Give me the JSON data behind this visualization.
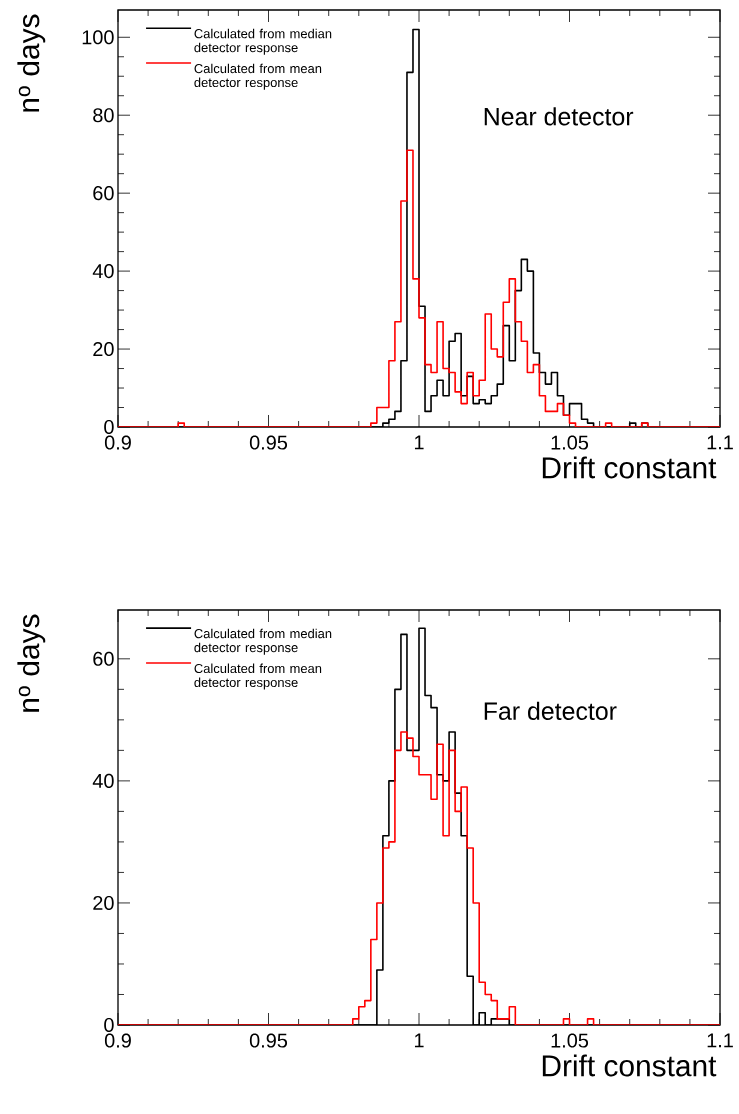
{
  "chart_data": [
    {
      "type": "histogram",
      "xlabel": "Drift constant",
      "ylabel": "n$^{o}$ days",
      "annotations": [
        "Near detector"
      ],
      "legend": "top left",
      "bins": [
        0.9,
        0.902,
        0.904,
        0.906,
        0.908,
        0.91,
        0.912,
        0.914,
        0.916,
        0.918,
        0.92,
        0.922,
        0.924,
        0.926,
        0.928,
        0.93,
        0.932,
        0.934,
        0.936,
        0.938,
        0.94,
        0.942,
        0.944,
        0.946,
        0.948,
        0.95,
        0.952,
        0.954,
        0.956,
        0.958,
        0.96,
        0.962,
        0.964,
        0.966,
        0.968,
        0.97,
        0.972,
        0.974,
        0.976,
        0.978,
        0.98,
        0.982,
        0.984,
        0.986,
        0.988,
        0.99,
        0.992,
        0.994,
        0.996,
        0.998,
        1.0,
        1.002,
        1.004,
        1.006,
        1.008,
        1.01,
        1.012,
        1.014,
        1.016,
        1.018,
        1.02,
        1.022,
        1.024,
        1.026,
        1.028,
        1.03,
        1.032,
        1.034,
        1.036,
        1.038,
        1.04,
        1.042,
        1.044,
        1.046,
        1.048,
        1.05,
        1.052,
        1.054,
        1.056,
        1.058,
        1.06,
        1.062,
        1.064,
        1.066,
        1.068,
        1.07,
        1.072,
        1.074,
        1.076,
        1.078,
        1.08,
        1.082,
        1.084,
        1.086,
        1.088,
        1.09,
        1.092,
        1.094,
        1.096,
        1.098,
        1.1
      ],
      "xlim": [
        0.9,
        1.1
      ],
      "xticks": [
        0.9,
        0.95,
        1,
        1.05,
        1.1
      ],
      "ylim": [
        0,
        107
      ],
      "yticks": [
        0,
        20,
        40,
        60,
        80,
        100
      ],
      "series": [
        {
          "name": "Calculated from median detector response",
          "color": "#000000",
          "values": [
            0,
            0,
            0,
            0,
            0,
            0,
            0,
            0,
            0,
            0,
            0,
            0,
            0,
            0,
            0,
            0,
            0,
            0,
            0,
            0,
            0,
            0,
            0,
            0,
            0,
            0,
            0,
            0,
            0,
            0,
            0,
            0,
            0,
            0,
            0,
            0,
            0,
            0,
            0,
            0,
            0,
            0,
            0,
            0,
            1,
            2,
            4,
            17,
            91,
            102,
            31,
            4,
            8,
            12,
            8,
            22,
            24,
            8,
            13,
            6,
            7,
            6,
            8,
            11,
            26,
            17,
            35,
            43,
            40,
            19,
            14,
            11,
            14,
            8,
            3,
            6,
            6,
            2,
            1,
            0,
            0,
            0,
            0,
            0,
            0,
            1,
            0,
            1,
            0,
            0,
            0,
            0,
            0,
            0,
            0,
            0,
            0,
            0,
            0,
            0
          ]
        },
        {
          "name": "Calculated from mean detector response",
          "color": "#ff0000",
          "values": [
            0,
            0,
            0,
            0,
            0,
            0,
            0,
            0,
            0,
            0,
            1,
            0,
            0,
            0,
            0,
            0,
            0,
            0,
            0,
            0,
            0,
            0,
            0,
            0,
            0,
            0,
            0,
            0,
            0,
            0,
            0,
            0,
            0,
            0,
            0,
            0,
            0,
            0,
            0,
            0,
            0,
            0,
            1,
            5,
            5,
            17,
            27,
            58,
            71,
            38,
            28,
            16,
            14,
            27,
            15,
            14,
            9,
            6,
            14,
            8,
            12,
            29,
            20,
            18,
            32,
            38,
            27,
            22,
            14,
            16,
            8,
            4,
            4,
            6,
            3,
            1,
            0,
            0,
            0,
            0,
            0,
            1,
            0,
            0,
            0,
            0,
            0,
            1,
            0,
            0,
            0,
            0,
            0,
            0,
            0,
            0,
            0,
            0,
            0,
            0
          ]
        }
      ]
    },
    {
      "type": "histogram",
      "xlabel": "Drift constant",
      "ylabel": "n$^{o}$ days",
      "annotations": [
        "Far detector"
      ],
      "legend": "top left",
      "bins": [
        0.9,
        0.902,
        0.904,
        0.906,
        0.908,
        0.91,
        0.912,
        0.914,
        0.916,
        0.918,
        0.92,
        0.922,
        0.924,
        0.926,
        0.928,
        0.93,
        0.932,
        0.934,
        0.936,
        0.938,
        0.94,
        0.942,
        0.944,
        0.946,
        0.948,
        0.95,
        0.952,
        0.954,
        0.956,
        0.958,
        0.96,
        0.962,
        0.964,
        0.966,
        0.968,
        0.97,
        0.972,
        0.974,
        0.976,
        0.978,
        0.98,
        0.982,
        0.984,
        0.986,
        0.988,
        0.99,
        0.992,
        0.994,
        0.996,
        0.998,
        1.0,
        1.002,
        1.004,
        1.006,
        1.008,
        1.01,
        1.012,
        1.014,
        1.016,
        1.018,
        1.02,
        1.022,
        1.024,
        1.026,
        1.028,
        1.03,
        1.032,
        1.034,
        1.036,
        1.038,
        1.04,
        1.042,
        1.044,
        1.046,
        1.048,
        1.05,
        1.052,
        1.054,
        1.056,
        1.058,
        1.06,
        1.062,
        1.064,
        1.066,
        1.068,
        1.07,
        1.072,
        1.074,
        1.076,
        1.078,
        1.08,
        1.082,
        1.084,
        1.086,
        1.088,
        1.09,
        1.092,
        1.094,
        1.096,
        1.098,
        1.1
      ],
      "xlim": [
        0.9,
        1.1
      ],
      "xticks": [
        0.9,
        0.95,
        1,
        1.05,
        1.1
      ],
      "ylim": [
        0,
        68
      ],
      "yticks": [
        0,
        20,
        40,
        60
      ],
      "series": [
        {
          "name": "Calculated from median detector response",
          "color": "#000000",
          "values": [
            0,
            0,
            0,
            0,
            0,
            0,
            0,
            0,
            0,
            0,
            0,
            0,
            0,
            0,
            0,
            0,
            0,
            0,
            0,
            0,
            0,
            0,
            0,
            0,
            0,
            0,
            0,
            0,
            0,
            0,
            0,
            0,
            0,
            0,
            0,
            0,
            0,
            0,
            0,
            0,
            0,
            0,
            0,
            9,
            31,
            40,
            55,
            64,
            45,
            45,
            65,
            54,
            52,
            41,
            40,
            48,
            38,
            31,
            8,
            0,
            2,
            0,
            1,
            1,
            1,
            0,
            0,
            0,
            0,
            0,
            0,
            0,
            0,
            0,
            0,
            0,
            0,
            0,
            0,
            0,
            0,
            0,
            0,
            0,
            0,
            0,
            0,
            0,
            0,
            0,
            0,
            0,
            0,
            0,
            0,
            0,
            0,
            0,
            0,
            0
          ]
        },
        {
          "name": "Calculated from mean detector response",
          "color": "#ff0000",
          "values": [
            0,
            0,
            0,
            0,
            0,
            0,
            0,
            0,
            0,
            0,
            0,
            0,
            0,
            0,
            0,
            0,
            0,
            0,
            0,
            0,
            0,
            0,
            0,
            0,
            0,
            0,
            0,
            0,
            0,
            0,
            0,
            0,
            0,
            0,
            0,
            0,
            0,
            0,
            0,
            1,
            3,
            4,
            14,
            20,
            29,
            30,
            45,
            48,
            47,
            44,
            41,
            41,
            37,
            46,
            31,
            45,
            35,
            39,
            29,
            20,
            7,
            5,
            4,
            1,
            1,
            3,
            0,
            0,
            0,
            0,
            0,
            0,
            0,
            0,
            1,
            0,
            0,
            0,
            1,
            0,
            0,
            0,
            0,
            0,
            0,
            0,
            0,
            0,
            0,
            0,
            0,
            0,
            0,
            0,
            0,
            0,
            0,
            0,
            0,
            0
          ]
        }
      ]
    }
  ]
}
